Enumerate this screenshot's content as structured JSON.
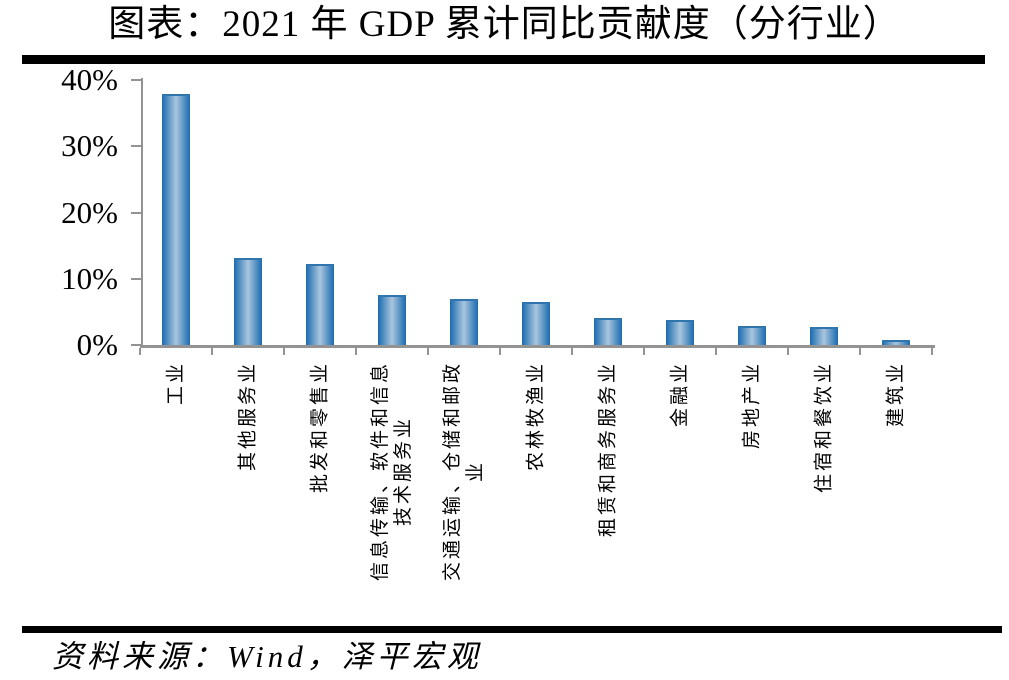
{
  "page": {
    "title": "图表：2021 年 GDP 累计同比贡献度（分行业）",
    "source": "资料来源：Wind，泽平宏观"
  },
  "colors": {
    "bar_edge": "#1a6ab0",
    "bar_mid": "#a9c5dd",
    "bar_top_border": "#2f76ae",
    "axis": "#939393",
    "divider": "#000000",
    "text": "#000000"
  },
  "chart_data": {
    "type": "bar",
    "title": "图表：2021 年 GDP 累计同比贡献度（分行业）",
    "unit": "%",
    "categories": [
      "工业",
      "其他服务业",
      "批发和零售业",
      "信息传输、软件和信息技术服务业",
      "交通运输、仓储和邮政业",
      "农林牧渔业",
      "租赁和商务服务业",
      "金融业",
      "房地产业",
      "住宿和餐饮业",
      "建筑业"
    ],
    "categories_display": [
      "工业",
      "其他服务业",
      "批发和零售业",
      "信息传输、软件和信息\n技术服务业",
      "交通运输、仓储和邮政\n业",
      "农林牧渔业",
      "租赁和商务服务业",
      "金融业",
      "房地产业",
      "住宿和餐饮业",
      "建筑业"
    ],
    "values": [
      38.0,
      13.3,
      12.4,
      7.7,
      7.1,
      6.7,
      4.2,
      3.9,
      3.0,
      2.9,
      0.9
    ],
    "ylim": [
      0,
      40
    ],
    "ytick_values": [
      0,
      10,
      20,
      30,
      40
    ],
    "ytick_labels": [
      "0%",
      "10%",
      "20%",
      "30%",
      "40%"
    ],
    "grid": false,
    "legend": null,
    "source": "资料来源：Wind，泽平宏观"
  }
}
